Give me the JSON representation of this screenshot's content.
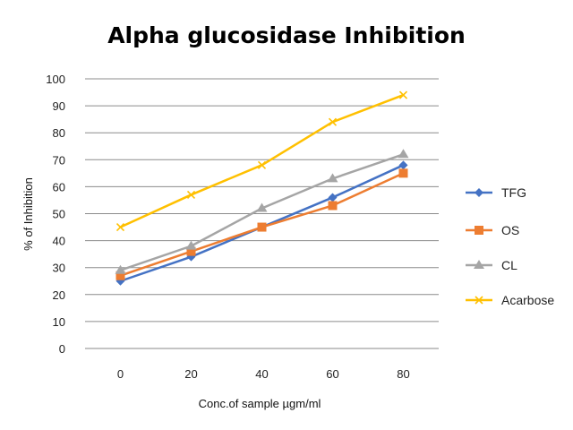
{
  "chart_data": {
    "type": "line",
    "title": "Alpha glucosidase Inhibition",
    "xlabel": "Conc.of sample µgm/ml",
    "ylabel": "% of Inhibition",
    "categories": [
      "0",
      "20",
      "40",
      "60",
      "80"
    ],
    "ylim": [
      0,
      100
    ],
    "yticks": [
      "0",
      "10",
      "20",
      "30",
      "40",
      "50",
      "60",
      "70",
      "80",
      "90",
      "100"
    ],
    "grid": true,
    "legend_position": "right",
    "series": [
      {
        "name": "TFG",
        "values": [
          25,
          34,
          45,
          56,
          68
        ],
        "color": "#4472C4",
        "marker": "diamond"
      },
      {
        "name": "OS",
        "values": [
          27,
          36,
          45,
          53,
          65
        ],
        "color": "#ED7D31",
        "marker": "square"
      },
      {
        "name": "CL",
        "values": [
          29,
          38,
          52,
          63,
          72
        ],
        "color": "#A5A5A5",
        "marker": "triangle"
      },
      {
        "name": "Acarbose",
        "values": [
          45,
          57,
          68,
          84,
          94
        ],
        "color": "#FFC000",
        "marker": "x"
      }
    ]
  }
}
